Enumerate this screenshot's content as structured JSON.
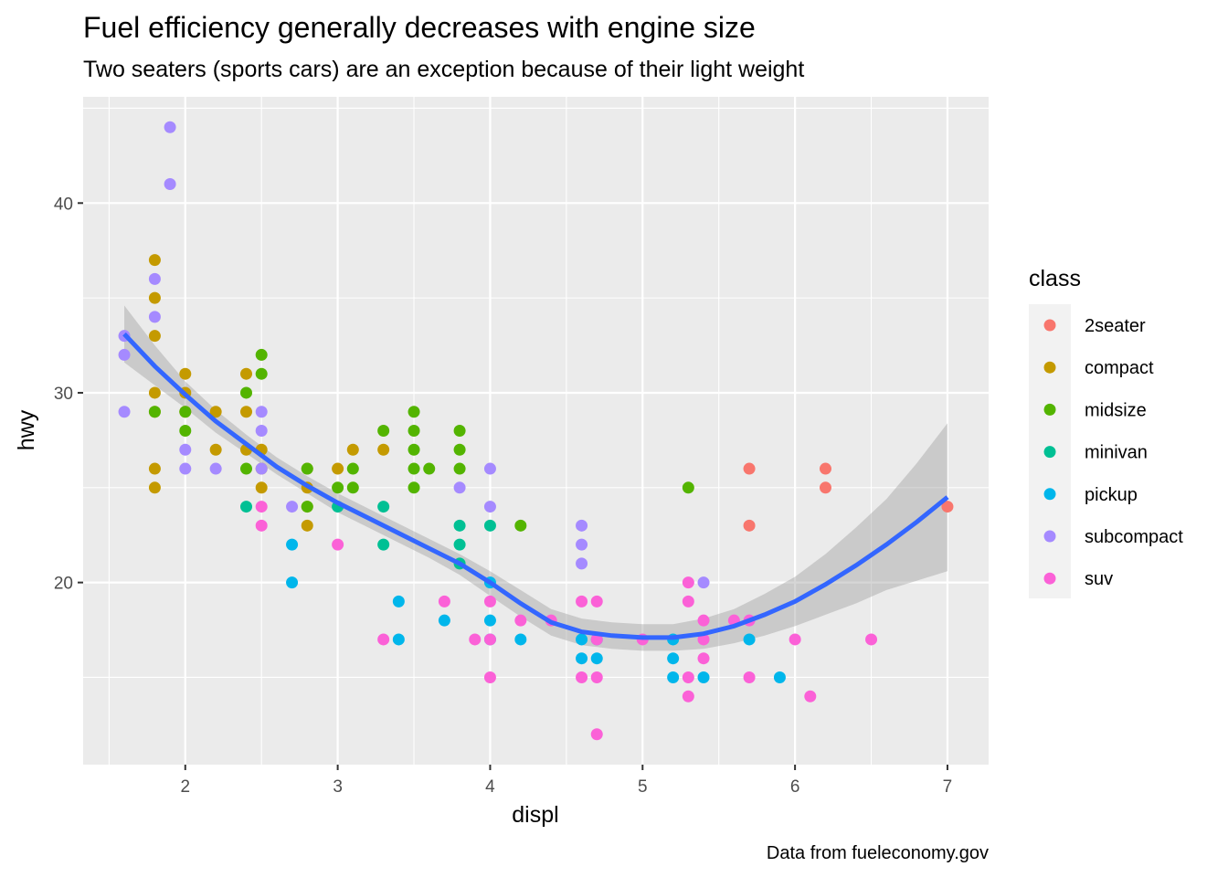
{
  "chart_data": {
    "type": "scatter",
    "title": "Fuel efficiency generally decreases with engine size",
    "subtitle": "Two seaters (sports cars) are an exception because of their light weight",
    "caption": "Data from fueleconomy.gov",
    "xlabel": "displ",
    "ylabel": "hwy",
    "xlim": [
      1.33,
      7.27
    ],
    "ylim": [
      10.4,
      45.6
    ],
    "x_ticks": [
      2,
      3,
      4,
      5,
      6,
      7
    ],
    "y_ticks": [
      20,
      30,
      40
    ],
    "grid": true,
    "legend": {
      "title": "class",
      "placement": "right",
      "entries": [
        {
          "name": "2seater",
          "color": "#F8766D"
        },
        {
          "name": "compact",
          "color": "#C49A00"
        },
        {
          "name": "midsize",
          "color": "#53B400"
        },
        {
          "name": "minivan",
          "color": "#00C094"
        },
        {
          "name": "pickup",
          "color": "#00B6EB"
        },
        {
          "name": "subcompact",
          "color": "#A58AFF"
        },
        {
          "name": "suv",
          "color": "#FB61D7"
        }
      ]
    },
    "series": [
      {
        "name": "2seater",
        "points": [
          [
            5.7,
            26
          ],
          [
            5.7,
            23
          ],
          [
            6.2,
            26
          ],
          [
            6.2,
            25
          ],
          [
            7.0,
            24
          ]
        ]
      },
      {
        "name": "compact",
        "points": [
          [
            1.8,
            37
          ],
          [
            1.8,
            35
          ],
          [
            1.8,
            33
          ],
          [
            1.8,
            30
          ],
          [
            1.8,
            29
          ],
          [
            1.8,
            26
          ],
          [
            1.8,
            25
          ],
          [
            2.0,
            31
          ],
          [
            2.0,
            30
          ],
          [
            2.0,
            29
          ],
          [
            2.2,
            29
          ],
          [
            2.2,
            27
          ],
          [
            2.4,
            31
          ],
          [
            2.4,
            29
          ],
          [
            2.4,
            27
          ],
          [
            2.5,
            27
          ],
          [
            2.5,
            26
          ],
          [
            2.5,
            25
          ],
          [
            2.8,
            26
          ],
          [
            2.8,
            25
          ],
          [
            2.8,
            24
          ],
          [
            2.8,
            23
          ],
          [
            3.0,
            26
          ],
          [
            3.1,
            27
          ],
          [
            3.3,
            27
          ]
        ]
      },
      {
        "name": "midsize",
        "points": [
          [
            1.8,
            29
          ],
          [
            2.0,
            29
          ],
          [
            2.0,
            28
          ],
          [
            2.4,
            30
          ],
          [
            2.4,
            26
          ],
          [
            2.5,
            32
          ],
          [
            2.5,
            31
          ],
          [
            2.8,
            26
          ],
          [
            2.8,
            24
          ],
          [
            3.0,
            25
          ],
          [
            3.1,
            26
          ],
          [
            3.1,
            25
          ],
          [
            3.3,
            28
          ],
          [
            3.5,
            29
          ],
          [
            3.5,
            28
          ],
          [
            3.5,
            27
          ],
          [
            3.5,
            26
          ],
          [
            3.5,
            25
          ],
          [
            3.6,
            26
          ],
          [
            3.8,
            28
          ],
          [
            3.8,
            27
          ],
          [
            3.8,
            26
          ],
          [
            4.2,
            23
          ],
          [
            5.3,
            25
          ]
        ]
      },
      {
        "name": "minivan",
        "points": [
          [
            2.4,
            24
          ],
          [
            3.0,
            24
          ],
          [
            3.3,
            24
          ],
          [
            3.3,
            22
          ],
          [
            3.8,
            23
          ],
          [
            3.8,
            22
          ],
          [
            3.8,
            21
          ],
          [
            4.0,
            23
          ]
        ]
      },
      {
        "name": "pickup",
        "points": [
          [
            2.7,
            22
          ],
          [
            2.7,
            20
          ],
          [
            3.4,
            19
          ],
          [
            3.4,
            17
          ],
          [
            3.7,
            18
          ],
          [
            4.0,
            20
          ],
          [
            4.0,
            18
          ],
          [
            4.0,
            17
          ],
          [
            4.2,
            17
          ],
          [
            4.6,
            17
          ],
          [
            4.6,
            16
          ],
          [
            4.7,
            17
          ],
          [
            4.7,
            16
          ],
          [
            5.2,
            17
          ],
          [
            5.2,
            16
          ],
          [
            5.2,
            15
          ],
          [
            5.4,
            15
          ],
          [
            5.7,
            17
          ],
          [
            5.9,
            15
          ]
        ]
      },
      {
        "name": "subcompact",
        "points": [
          [
            1.6,
            33
          ],
          [
            1.6,
            32
          ],
          [
            1.6,
            29
          ],
          [
            1.8,
            36
          ],
          [
            1.8,
            34
          ],
          [
            1.9,
            44
          ],
          [
            1.9,
            41
          ],
          [
            2.0,
            27
          ],
          [
            2.0,
            26
          ],
          [
            2.2,
            26
          ],
          [
            2.5,
            29
          ],
          [
            2.5,
            28
          ],
          [
            2.5,
            26
          ],
          [
            2.7,
            24
          ],
          [
            3.8,
            25
          ],
          [
            4.0,
            26
          ],
          [
            4.0,
            24
          ],
          [
            4.6,
            23
          ],
          [
            4.6,
            22
          ],
          [
            4.6,
            21
          ],
          [
            5.4,
            20
          ]
        ]
      },
      {
        "name": "suv",
        "points": [
          [
            2.5,
            24
          ],
          [
            2.5,
            23
          ],
          [
            3.0,
            22
          ],
          [
            3.3,
            17
          ],
          [
            3.7,
            19
          ],
          [
            3.9,
            17
          ],
          [
            4.0,
            19
          ],
          [
            4.0,
            17
          ],
          [
            4.0,
            15
          ],
          [
            4.2,
            18
          ],
          [
            4.4,
            18
          ],
          [
            4.6,
            19
          ],
          [
            4.6,
            15
          ],
          [
            4.7,
            19
          ],
          [
            4.7,
            17
          ],
          [
            4.7,
            15
          ],
          [
            4.7,
            12
          ],
          [
            5.0,
            17
          ],
          [
            5.3,
            20
          ],
          [
            5.3,
            19
          ],
          [
            5.3,
            15
          ],
          [
            5.3,
            14
          ],
          [
            5.4,
            18
          ],
          [
            5.4,
            17
          ],
          [
            5.4,
            16
          ],
          [
            5.6,
            18
          ],
          [
            5.7,
            18
          ],
          [
            5.7,
            15
          ],
          [
            6.0,
            17
          ],
          [
            6.1,
            14
          ],
          [
            6.5,
            17
          ]
        ]
      }
    ],
    "smooth": {
      "method": "loess",
      "color": "#3366FF",
      "x": [
        1.6,
        1.8,
        2.0,
        2.2,
        2.4,
        2.6,
        2.8,
        3.0,
        3.2,
        3.4,
        3.6,
        3.8,
        4.0,
        4.2,
        4.4,
        4.6,
        4.8,
        5.0,
        5.2,
        5.4,
        5.6,
        5.8,
        6.0,
        6.2,
        6.4,
        6.6,
        6.8,
        7.0
      ],
      "y": [
        33.1,
        31.4,
        29.9,
        28.5,
        27.3,
        26.1,
        25.1,
        24.2,
        23.4,
        22.6,
        21.8,
        21.0,
        20.0,
        18.9,
        17.9,
        17.4,
        17.2,
        17.1,
        17.1,
        17.3,
        17.7,
        18.3,
        19.0,
        19.9,
        20.9,
        22.0,
        23.2,
        24.5
      ],
      "se_lower": [
        31.6,
        30.4,
        29.2,
        27.9,
        26.8,
        25.7,
        24.7,
        23.7,
        22.9,
        22.1,
        21.3,
        20.4,
        19.3,
        18.2,
        17.2,
        16.7,
        16.5,
        16.4,
        16.4,
        16.5,
        16.8,
        17.2,
        17.7,
        18.3,
        18.9,
        19.6,
        20.1,
        20.6
      ],
      "se_upper": [
        34.6,
        32.5,
        30.6,
        29.1,
        27.8,
        26.6,
        25.6,
        24.7,
        23.9,
        23.1,
        22.3,
        21.5,
        20.6,
        19.6,
        18.6,
        18.1,
        17.9,
        17.8,
        17.8,
        18.1,
        18.6,
        19.4,
        20.3,
        21.5,
        22.9,
        24.4,
        26.3,
        28.4
      ]
    }
  }
}
